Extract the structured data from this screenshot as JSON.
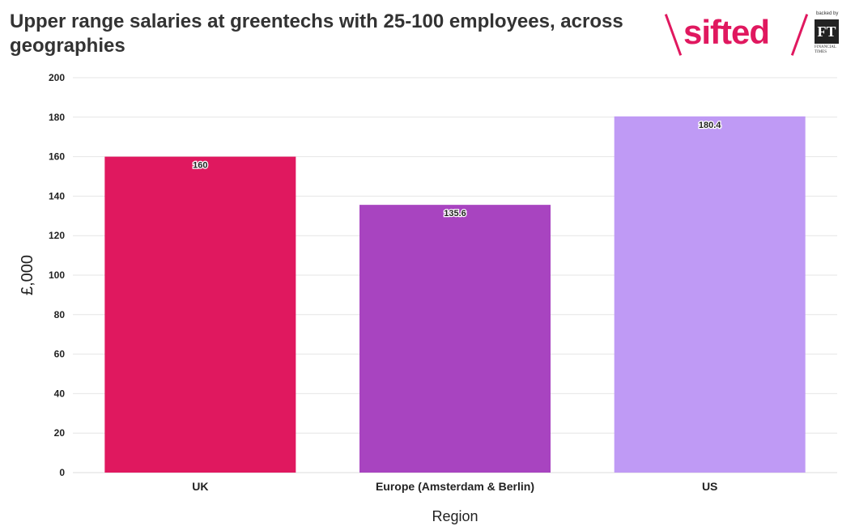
{
  "header": {
    "title": "Upper range salaries at greentechs with 25-100 employees, across geographies"
  },
  "logo": {
    "word": "sifted",
    "backed_by": "backed by",
    "ft": "FT",
    "ft_sub": "FINANCIAL TIMES",
    "brand_color": "#e0185f"
  },
  "chart_data": {
    "type": "bar",
    "categories": [
      "UK",
      "Europe (Amsterdam & Berlin)",
      "US"
    ],
    "values": [
      160,
      135.6,
      180.4
    ],
    "value_labels": [
      "160",
      "135.6",
      "180.4"
    ],
    "colors": [
      "#e0185f",
      "#a844c0",
      "#bf9af5"
    ],
    "xlabel": "Region",
    "ylabel": "£,000",
    "ylim": [
      0,
      200
    ],
    "yticks": [
      0,
      20,
      40,
      60,
      80,
      100,
      120,
      140,
      160,
      180,
      200
    ],
    "grid": true
  }
}
